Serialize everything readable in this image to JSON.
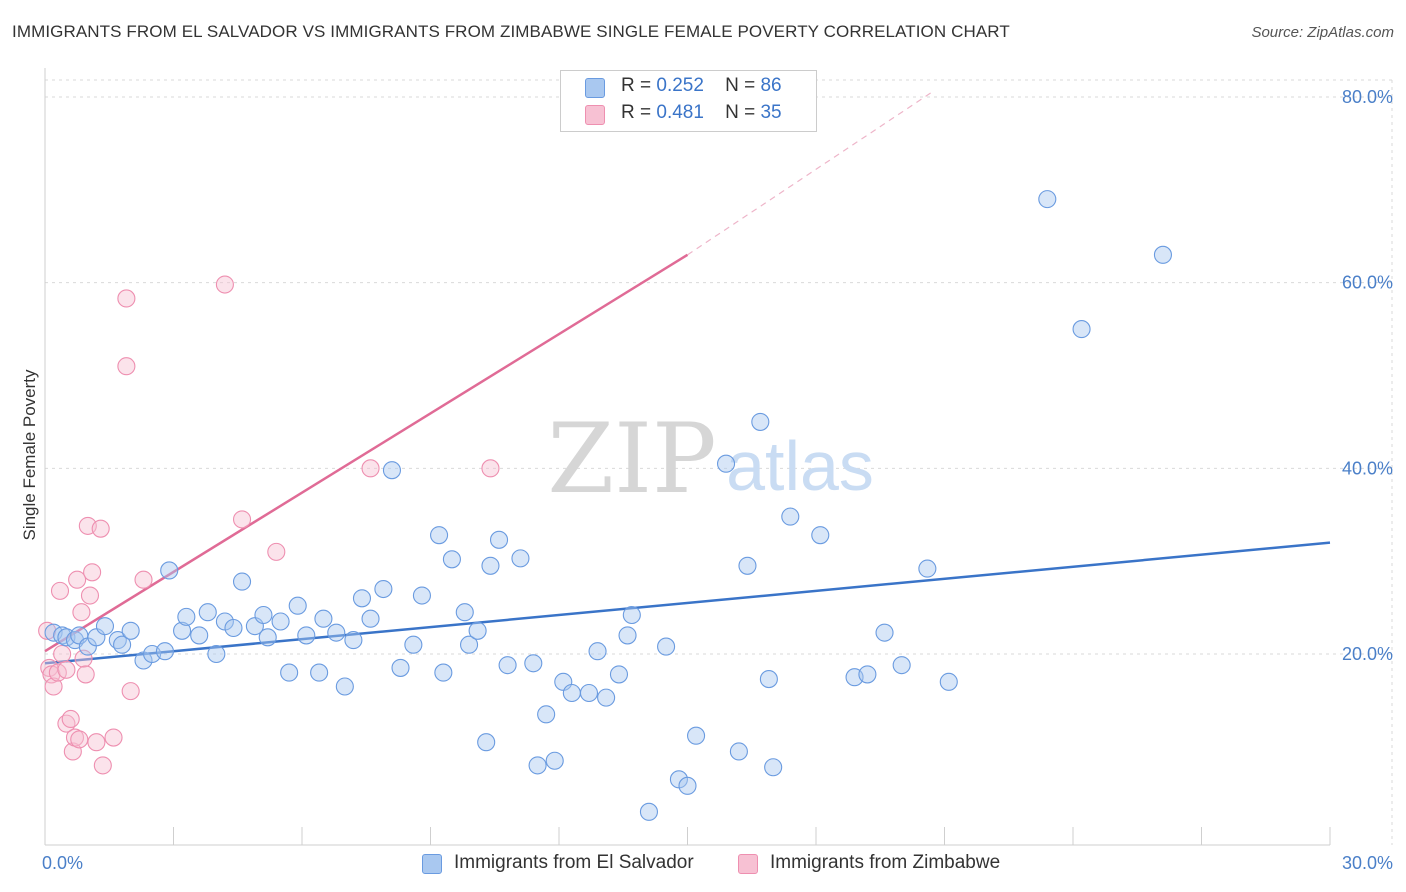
{
  "title": "IMMIGRANTS FROM EL SALVADOR VS IMMIGRANTS FROM ZIMBABWE SINGLE FEMALE POVERTY CORRELATION CHART",
  "source": "Source: ZipAtlas.com",
  "watermark": {
    "zip": "ZIP",
    "atlas": "atlas"
  },
  "legend": {
    "r_label": "R =",
    "n_label": "N =",
    "rows": [
      {
        "r": "0.252",
        "n": "86",
        "color": "#a9c8f0",
        "border": "#6a9be0"
      },
      {
        "r": "0.481",
        "n": "35",
        "color": "#f7c1d3",
        "border": "#ee8fb0"
      }
    ]
  },
  "colors": {
    "blue_line": "#3a74c8",
    "pink_line": "#e06b96",
    "blue_fill": "#a9c8f0",
    "pink_fill": "#f7c1d3",
    "grid": "#d9d9d9",
    "tick_text": "#4a7fc8"
  },
  "chart_data": {
    "type": "scatter",
    "xlabel": "",
    "ylabel": "Single Female Poverty",
    "xlim": [
      0,
      30
    ],
    "ylim": [
      0,
      82
    ],
    "x_ticks": [
      "0.0%",
      "30.0%"
    ],
    "y_ticks": [
      {
        "value": 20,
        "label": "20.0%"
      },
      {
        "value": 40,
        "label": "40.0%"
      },
      {
        "value": 60,
        "label": "60.0%"
      },
      {
        "value": 80,
        "label": "80.0%"
      }
    ],
    "grid": "horizontal dashed",
    "series": [
      {
        "name": "Immigrants from El Salvador",
        "r": 0.252,
        "n": 86,
        "trend": {
          "x0": 0,
          "y0": 19.0,
          "x1": 30,
          "y1": 32.0
        },
        "points": [
          [
            0.2,
            22.3
          ],
          [
            0.4,
            22.0
          ],
          [
            0.5,
            21.8
          ],
          [
            0.7,
            21.5
          ],
          [
            0.8,
            22.0
          ],
          [
            1.0,
            20.8
          ],
          [
            1.2,
            21.8
          ],
          [
            1.4,
            23.0
          ],
          [
            1.7,
            21.5
          ],
          [
            1.8,
            21.0
          ],
          [
            2.0,
            22.5
          ],
          [
            2.3,
            19.3
          ],
          [
            2.5,
            20.0
          ],
          [
            2.8,
            20.3
          ],
          [
            2.9,
            29.0
          ],
          [
            3.2,
            22.5
          ],
          [
            3.3,
            24.0
          ],
          [
            3.6,
            22.0
          ],
          [
            3.8,
            24.5
          ],
          [
            4.0,
            20.0
          ],
          [
            4.2,
            23.5
          ],
          [
            4.4,
            22.8
          ],
          [
            4.6,
            27.8
          ],
          [
            4.9,
            23.0
          ],
          [
            5.1,
            24.2
          ],
          [
            5.2,
            21.8
          ],
          [
            5.5,
            23.5
          ],
          [
            5.7,
            18.0
          ],
          [
            5.9,
            25.2
          ],
          [
            6.1,
            22.0
          ],
          [
            6.4,
            18.0
          ],
          [
            6.5,
            23.8
          ],
          [
            6.8,
            22.3
          ],
          [
            7.0,
            16.5
          ],
          [
            7.2,
            21.5
          ],
          [
            7.4,
            26.0
          ],
          [
            7.6,
            23.8
          ],
          [
            7.9,
            27.0
          ],
          [
            8.1,
            39.8
          ],
          [
            8.3,
            18.5
          ],
          [
            8.6,
            21.0
          ],
          [
            8.8,
            26.3
          ],
          [
            9.2,
            32.8
          ],
          [
            9.3,
            18.0
          ],
          [
            9.5,
            30.2
          ],
          [
            9.8,
            24.5
          ],
          [
            9.9,
            21.0
          ],
          [
            10.1,
            22.5
          ],
          [
            10.3,
            10.5
          ],
          [
            10.4,
            29.5
          ],
          [
            10.6,
            32.3
          ],
          [
            10.8,
            18.8
          ],
          [
            11.1,
            30.3
          ],
          [
            11.4,
            19.0
          ],
          [
            11.5,
            8.0
          ],
          [
            11.7,
            13.5
          ],
          [
            11.9,
            8.5
          ],
          [
            12.1,
            17.0
          ],
          [
            12.3,
            15.8
          ],
          [
            12.7,
            15.8
          ],
          [
            12.9,
            20.3
          ],
          [
            13.1,
            15.3
          ],
          [
            13.4,
            17.8
          ],
          [
            13.6,
            22.0
          ],
          [
            13.7,
            24.2
          ],
          [
            14.1,
            3.0
          ],
          [
            14.5,
            20.8
          ],
          [
            14.8,
            6.5
          ],
          [
            15.0,
            5.8
          ],
          [
            15.2,
            11.2
          ],
          [
            15.9,
            40.5
          ],
          [
            16.2,
            9.5
          ],
          [
            16.4,
            29.5
          ],
          [
            16.7,
            45.0
          ],
          [
            16.9,
            17.3
          ],
          [
            17.0,
            7.8
          ],
          [
            17.4,
            34.8
          ],
          [
            18.1,
            32.8
          ],
          [
            18.9,
            17.5
          ],
          [
            19.2,
            17.8
          ],
          [
            19.6,
            22.3
          ],
          [
            20.0,
            18.8
          ],
          [
            20.6,
            29.2
          ],
          [
            21.1,
            17.0
          ],
          [
            23.4,
            69.0
          ],
          [
            24.2,
            55.0
          ],
          [
            26.1,
            63.0
          ]
        ]
      },
      {
        "name": "Immigrants from Zimbabwe",
        "r": 0.481,
        "n": 35,
        "trend": {
          "x0": 0,
          "y0": 20.3,
          "x1": 15.0,
          "y1": 63.0,
          "dash_to_x": 20.7,
          "dash_to_y": 80.5
        },
        "points": [
          [
            0.05,
            22.5
          ],
          [
            0.1,
            18.5
          ],
          [
            0.15,
            17.8
          ],
          [
            0.2,
            16.5
          ],
          [
            0.3,
            18.0
          ],
          [
            0.35,
            26.8
          ],
          [
            0.4,
            20.0
          ],
          [
            0.5,
            18.3
          ],
          [
            0.5,
            12.5
          ],
          [
            0.6,
            13.0
          ],
          [
            0.65,
            9.5
          ],
          [
            0.7,
            11.0
          ],
          [
            0.75,
            28.0
          ],
          [
            0.8,
            10.8
          ],
          [
            0.85,
            24.5
          ],
          [
            0.9,
            19.5
          ],
          [
            0.95,
            17.8
          ],
          [
            1.0,
            33.8
          ],
          [
            1.05,
            26.3
          ],
          [
            1.1,
            28.8
          ],
          [
            1.2,
            10.5
          ],
          [
            1.3,
            33.5
          ],
          [
            1.35,
            8.0
          ],
          [
            1.6,
            11.0
          ],
          [
            1.9,
            58.3
          ],
          [
            1.9,
            51.0
          ],
          [
            2.0,
            16.0
          ],
          [
            2.3,
            28.0
          ],
          [
            4.2,
            59.8
          ],
          [
            4.6,
            34.5
          ],
          [
            5.4,
            31.0
          ],
          [
            7.6,
            40.0
          ],
          [
            10.4,
            40.0
          ]
        ]
      }
    ]
  }
}
